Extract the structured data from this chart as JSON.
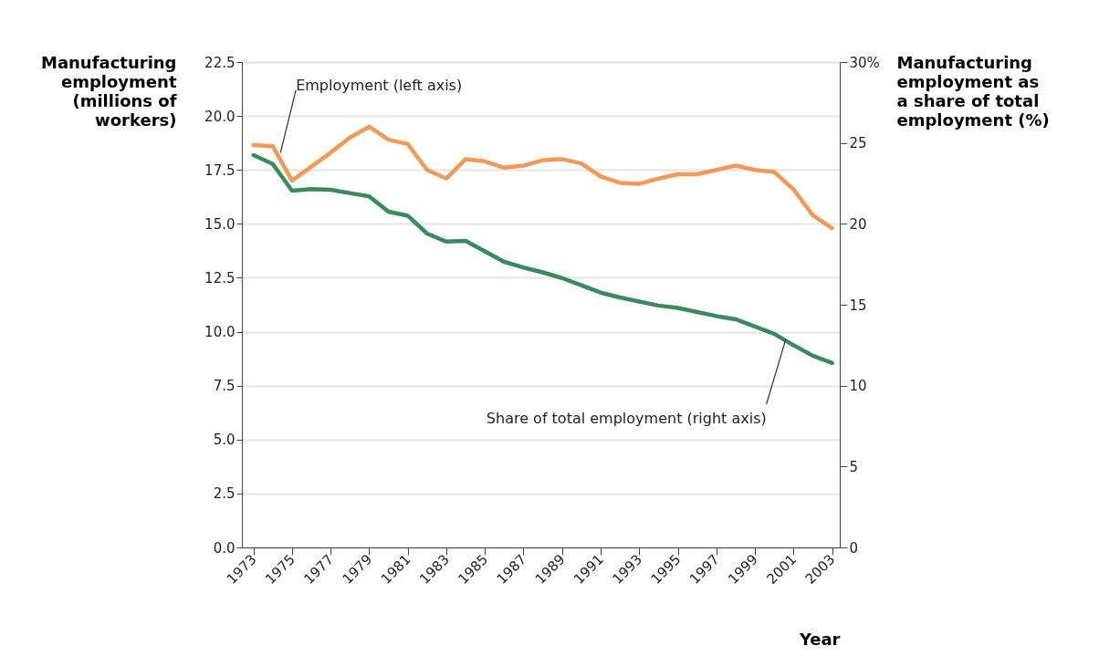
{
  "chart_data": {
    "type": "line",
    "xlabel": "Year",
    "ylabel": "Manufacturing\nemployment\n(millions of\nworkers)",
    "y2label": "Manufacturing\nemployment as\na share of total\nemployment (%)",
    "xlim": [
      1972.4,
      2003.4
    ],
    "xticks": [
      1973,
      1975,
      1977,
      1979,
      1981,
      1983,
      1985,
      1987,
      1989,
      1991,
      1993,
      1995,
      1997,
      1999,
      2001,
      2003
    ],
    "ylim": [
      0,
      22.5
    ],
    "yticks": [
      {
        "value": 0,
        "label": "0.0"
      },
      {
        "value": 2.5,
        "label": "2.5"
      },
      {
        "value": 5,
        "label": "5.0"
      },
      {
        "value": 7.5,
        "label": "7.5"
      },
      {
        "value": 10,
        "label": "10.0"
      },
      {
        "value": 12.5,
        "label": "12.5"
      },
      {
        "value": 15,
        "label": "15.0"
      },
      {
        "value": 17.5,
        "label": "17.5"
      },
      {
        "value": 20,
        "label": "20.0"
      },
      {
        "value": 22.5,
        "label": "22.5"
      }
    ],
    "y2lim": [
      0,
      30
    ],
    "y2ticks": [
      0,
      5,
      10,
      15,
      20,
      25,
      {
        "value": 30,
        "label": "30%"
      }
    ],
    "grid": "y",
    "line_style": "solid",
    "marker": "none",
    "x": [
      1973,
      1974,
      1975,
      1976,
      1977,
      1978,
      1979,
      1980,
      1981,
      1982,
      1983,
      1984,
      1985,
      1986,
      1987,
      1988,
      1989,
      1990,
      1991,
      1992,
      1993,
      1994,
      1995,
      1996,
      1997,
      1998,
      1999,
      2000,
      2001,
      2002,
      2003
    ],
    "series": [
      {
        "color": "#f09a58",
        "values": [
          18.65,
          18.6,
          17.0,
          17.65,
          18.3,
          19.0,
          19.5,
          18.9,
          18.7,
          17.5,
          17.1,
          18.0,
          17.9,
          17.6,
          17.7,
          17.95,
          18.0,
          17.8,
          17.2,
          16.9,
          16.85,
          17.1,
          17.3,
          17.3,
          17.5,
          17.7,
          17.5,
          17.4,
          16.6,
          15.4,
          14.8
        ]
      },
      {
        "color": "#3a8a5e",
        "axis": "y2",
        "values": [
          24.25,
          23.7,
          22.05,
          22.15,
          22.1,
          21.9,
          21.7,
          20.75,
          20.5,
          19.4,
          18.9,
          18.95,
          18.3,
          17.65,
          17.3,
          17.0,
          16.65,
          16.2,
          15.75,
          15.45,
          15.2,
          14.95,
          14.8,
          14.55,
          14.3,
          14.1,
          13.65,
          13.2,
          12.5,
          11.85,
          11.4
        ]
      }
    ],
    "annotations": [
      {
        "text": "Employment (left axis)",
        "x": 1974.4,
        "y": 18.3
      },
      {
        "text": "Share of total employment (right axis)",
        "x": 2000.6,
        "y": 9.65
      }
    ]
  }
}
